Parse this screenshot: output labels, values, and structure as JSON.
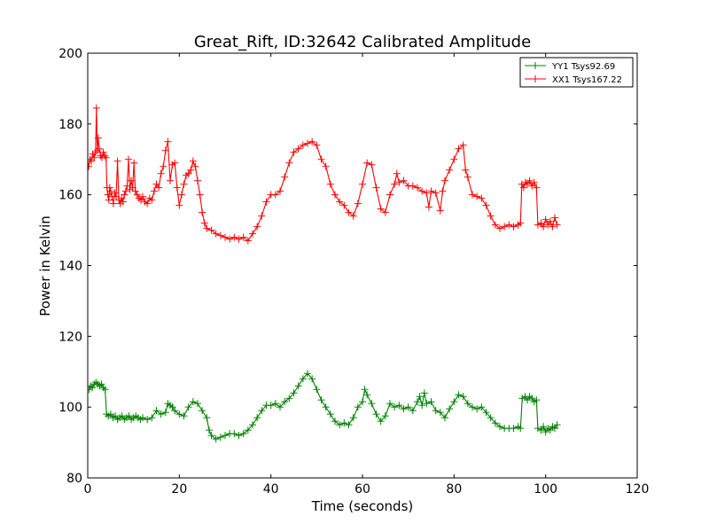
{
  "chart_data": {
    "type": "line",
    "title": "Great_Rift, ID:32642 Calibrated Amplitude",
    "xlabel": "Time (seconds)",
    "ylabel": "Power in Kelvin",
    "xlim": [
      0,
      120
    ],
    "ylim": [
      80,
      200
    ],
    "xticks": [
      0,
      20,
      40,
      60,
      80,
      100,
      120
    ],
    "yticks": [
      80,
      100,
      120,
      140,
      160,
      180,
      200
    ],
    "grid": false,
    "legend_position": "top-right",
    "marker": "plus",
    "series": [
      {
        "name": "YY1 Tsys92.69",
        "color": "#008000",
        "points": [
          [
            0.3,
            105.0
          ],
          [
            0.6,
            106.0
          ],
          [
            1.0,
            105.5
          ],
          [
            1.4,
            106.5
          ],
          [
            1.8,
            107.0
          ],
          [
            2.2,
            106.5
          ],
          [
            2.6,
            106.0
          ],
          [
            3.0,
            106.5
          ],
          [
            3.4,
            105.5
          ],
          [
            3.8,
            105.0
          ],
          [
            4.1,
            98.0
          ],
          [
            4.5,
            97.5
          ],
          [
            5.0,
            98.0
          ],
          [
            5.5,
            97.0
          ],
          [
            6.0,
            97.5
          ],
          [
            6.5,
            96.5
          ],
          [
            7.0,
            97.0
          ],
          [
            7.5,
            97.5
          ],
          [
            8.0,
            96.5
          ],
          [
            8.5,
            97.0
          ],
          [
            9.0,
            97.5
          ],
          [
            9.5,
            96.5
          ],
          [
            10.0,
            97.0
          ],
          [
            10.5,
            97.5
          ],
          [
            11.0,
            97.0
          ],
          [
            11.5,
            96.5
          ],
          [
            12.0,
            97.0
          ],
          [
            13.0,
            96.5
          ],
          [
            14.0,
            97.0
          ],
          [
            15.0,
            99.0
          ],
          [
            16.0,
            98.0
          ],
          [
            17.0,
            98.5
          ],
          [
            17.5,
            101.0
          ],
          [
            18.0,
            100.5
          ],
          [
            18.5,
            100.0
          ],
          [
            19.0,
            99.0
          ],
          [
            20.0,
            98.0
          ],
          [
            21.0,
            97.5
          ],
          [
            22.0,
            100.0
          ],
          [
            23.0,
            101.5
          ],
          [
            24.0,
            101.0
          ],
          [
            25.0,
            99.0
          ],
          [
            26.0,
            97.0
          ],
          [
            26.5,
            93.5
          ],
          [
            27.0,
            92.0
          ],
          [
            28.0,
            91.0
          ],
          [
            29.0,
            91.5
          ],
          [
            30.0,
            92.0
          ],
          [
            31.0,
            92.5
          ],
          [
            32.0,
            92.5
          ],
          [
            33.0,
            92.0
          ],
          [
            34.0,
            92.5
          ],
          [
            35.0,
            93.5
          ],
          [
            36.0,
            95.0
          ],
          [
            37.0,
            97.0
          ],
          [
            38.0,
            99.0
          ],
          [
            39.0,
            100.5
          ],
          [
            40.0,
            100.5
          ],
          [
            41.0,
            101.0
          ],
          [
            42.0,
            100.0
          ],
          [
            43.0,
            101.5
          ],
          [
            44.0,
            102.5
          ],
          [
            45.0,
            104.0
          ],
          [
            46.0,
            106.0
          ],
          [
            47.0,
            108.0
          ],
          [
            48.0,
            109.5
          ],
          [
            49.0,
            108.0
          ],
          [
            50.0,
            105.0
          ],
          [
            51.0,
            102.0
          ],
          [
            52.0,
            100.0
          ],
          [
            53.0,
            98.0
          ],
          [
            54.0,
            96.0
          ],
          [
            55.0,
            95.0
          ],
          [
            56.0,
            95.5
          ],
          [
            57.0,
            95.0
          ],
          [
            58.0,
            97.0
          ],
          [
            59.0,
            100.0
          ],
          [
            60.0,
            101.5
          ],
          [
            60.5,
            105.0
          ],
          [
            61.0,
            103.5
          ],
          [
            62.0,
            101.0
          ],
          [
            63.0,
            98.0
          ],
          [
            64.0,
            96.0
          ],
          [
            65.0,
            97.5
          ],
          [
            66.0,
            101.0
          ],
          [
            67.0,
            100.0
          ],
          [
            68.0,
            100.5
          ],
          [
            69.0,
            99.5
          ],
          [
            70.0,
            100.0
          ],
          [
            71.0,
            99.0
          ],
          [
            72.0,
            101.5
          ],
          [
            72.5,
            103.0
          ],
          [
            73.0,
            100.5
          ],
          [
            73.5,
            104.0
          ],
          [
            74.0,
            101.0
          ],
          [
            75.0,
            101.5
          ],
          [
            76.0,
            99.0
          ],
          [
            77.0,
            98.5
          ],
          [
            78.0,
            97.0
          ],
          [
            79.0,
            99.5
          ],
          [
            80.0,
            101.5
          ],
          [
            81.0,
            103.5
          ],
          [
            82.0,
            103.0
          ],
          [
            83.0,
            101.0
          ],
          [
            84.0,
            100.0
          ],
          [
            85.0,
            99.5
          ],
          [
            86.0,
            100.0
          ],
          [
            87.0,
            98.5
          ],
          [
            88.0,
            97.0
          ],
          [
            89.0,
            95.5
          ],
          [
            90.0,
            94.5
          ],
          [
            91.0,
            94.0
          ],
          [
            92.0,
            94.0
          ],
          [
            93.0,
            94.0
          ],
          [
            94.0,
            94.5
          ],
          [
            94.5,
            94.0
          ],
          [
            94.9,
            102.5
          ],
          [
            95.5,
            103.0
          ],
          [
            96.0,
            102.0
          ],
          [
            96.5,
            103.0
          ],
          [
            97.0,
            102.5
          ],
          [
            97.5,
            101.5
          ],
          [
            98.0,
            102.0
          ],
          [
            98.3,
            94.0
          ],
          [
            99.0,
            93.5
          ],
          [
            99.5,
            94.5
          ],
          [
            100.0,
            93.0
          ],
          [
            100.5,
            94.0
          ],
          [
            101.0,
            93.5
          ],
          [
            101.5,
            94.5
          ],
          [
            102.0,
            94.0
          ],
          [
            102.5,
            95.0
          ]
        ]
      },
      {
        "name": "XX1 Tsys167.22",
        "color": "#ff0000",
        "points": [
          [
            0.2,
            168.0
          ],
          [
            0.5,
            170.0
          ],
          [
            0.8,
            169.5
          ],
          [
            1.1,
            171.5
          ],
          [
            1.4,
            170.5
          ],
          [
            1.7,
            172.0
          ],
          [
            1.9,
            184.5
          ],
          [
            2.1,
            172.5
          ],
          [
            2.3,
            176.0
          ],
          [
            2.5,
            173.0
          ],
          [
            2.8,
            171.0
          ],
          [
            3.1,
            170.5
          ],
          [
            3.4,
            172.0
          ],
          [
            3.7,
            171.0
          ],
          [
            4.0,
            170.5
          ],
          [
            4.2,
            162.0
          ],
          [
            4.4,
            160.0
          ],
          [
            4.6,
            158.5
          ],
          [
            4.8,
            162.0
          ],
          [
            5.0,
            161.0
          ],
          [
            5.3,
            159.5
          ],
          [
            5.6,
            157.5
          ],
          [
            5.9,
            160.5
          ],
          [
            6.2,
            159.5
          ],
          [
            6.5,
            169.5
          ],
          [
            6.8,
            158.5
          ],
          [
            7.1,
            157.5
          ],
          [
            7.4,
            159.0
          ],
          [
            7.7,
            158.0
          ],
          [
            8.0,
            160.0
          ],
          [
            8.3,
            161.0
          ],
          [
            8.6,
            162.5
          ],
          [
            8.9,
            170.0
          ],
          [
            9.2,
            161.5
          ],
          [
            9.5,
            164.0
          ],
          [
            9.8,
            162.0
          ],
          [
            10.1,
            169.0
          ],
          [
            10.4,
            161.0
          ],
          [
            10.8,
            160.0
          ],
          [
            11.2,
            159.0
          ],
          [
            11.6,
            158.5
          ],
          [
            12.0,
            159.5
          ],
          [
            12.5,
            158.0
          ],
          [
            13.0,
            157.5
          ],
          [
            13.5,
            159.0
          ],
          [
            14.0,
            158.5
          ],
          [
            14.5,
            161.0
          ],
          [
            15.0,
            163.0
          ],
          [
            15.5,
            162.0
          ],
          [
            16.0,
            166.0
          ],
          [
            16.5,
            168.0
          ],
          [
            17.0,
            172.5
          ],
          [
            17.5,
            175.0
          ],
          [
            18.0,
            164.0
          ],
          [
            18.5,
            168.5
          ],
          [
            19.0,
            169.0
          ],
          [
            19.5,
            162.0
          ],
          [
            20.0,
            157.0
          ],
          [
            20.5,
            160.0
          ],
          [
            21.0,
            163.0
          ],
          [
            21.5,
            165.5
          ],
          [
            22.0,
            166.0
          ],
          [
            22.5,
            167.0
          ],
          [
            23.0,
            169.5
          ],
          [
            23.5,
            168.0
          ],
          [
            24.0,
            164.0
          ],
          [
            24.5,
            160.0
          ],
          [
            25.0,
            155.0
          ],
          [
            25.5,
            152.0
          ],
          [
            26.0,
            150.5
          ],
          [
            27.0,
            150.0
          ],
          [
            28.0,
            149.0
          ],
          [
            29.0,
            148.5
          ],
          [
            30.0,
            148.0
          ],
          [
            31.0,
            147.5
          ],
          [
            32.0,
            148.0
          ],
          [
            33.0,
            147.5
          ],
          [
            34.0,
            148.0
          ],
          [
            35.0,
            147.0
          ],
          [
            36.0,
            149.0
          ],
          [
            37.0,
            151.0
          ],
          [
            38.0,
            154.0
          ],
          [
            39.0,
            158.0
          ],
          [
            40.0,
            160.0
          ],
          [
            41.0,
            160.0
          ],
          [
            42.0,
            161.0
          ],
          [
            43.0,
            165.0
          ],
          [
            44.0,
            169.0
          ],
          [
            45.0,
            172.0
          ],
          [
            46.0,
            173.0
          ],
          [
            47.0,
            174.0
          ],
          [
            48.0,
            174.5
          ],
          [
            49.0,
            175.0
          ],
          [
            50.0,
            174.0
          ],
          [
            51.0,
            170.0
          ],
          [
            52.0,
            168.0
          ],
          [
            53.0,
            163.0
          ],
          [
            54.0,
            160.0
          ],
          [
            55.0,
            158.0
          ],
          [
            56.0,
            157.0
          ],
          [
            57.0,
            155.0
          ],
          [
            58.0,
            154.0
          ],
          [
            59.0,
            157.5
          ],
          [
            60.0,
            163.0
          ],
          [
            61.0,
            169.0
          ],
          [
            62.0,
            168.5
          ],
          [
            63.0,
            162.0
          ],
          [
            64.0,
            156.0
          ],
          [
            65.0,
            155.0
          ],
          [
            66.0,
            160.0
          ],
          [
            67.0,
            163.0
          ],
          [
            67.5,
            166.0
          ],
          [
            68.0,
            163.5
          ],
          [
            69.0,
            164.0
          ],
          [
            70.0,
            162.5
          ],
          [
            71.0,
            162.5
          ],
          [
            72.0,
            162.0
          ],
          [
            73.0,
            161.0
          ],
          [
            74.0,
            160.5
          ],
          [
            74.5,
            156.5
          ],
          [
            75.0,
            161.0
          ],
          [
            76.0,
            160.5
          ],
          [
            77.0,
            155.5
          ],
          [
            77.5,
            161.0
          ],
          [
            78.0,
            164.0
          ],
          [
            79.0,
            167.0
          ],
          [
            80.0,
            170.0
          ],
          [
            81.0,
            173.0
          ],
          [
            82.0,
            174.0
          ],
          [
            82.5,
            167.0
          ],
          [
            83.0,
            165.0
          ],
          [
            84.0,
            160.0
          ],
          [
            85.0,
            159.5
          ],
          [
            86.0,
            159.0
          ],
          [
            87.0,
            157.0
          ],
          [
            88.0,
            154.0
          ],
          [
            89.0,
            151.5
          ],
          [
            90.0,
            150.5
          ],
          [
            91.0,
            151.0
          ],
          [
            92.0,
            151.5
          ],
          [
            93.0,
            151.0
          ],
          [
            94.0,
            151.5
          ],
          [
            94.5,
            152.0
          ],
          [
            94.8,
            163.0
          ],
          [
            95.2,
            162.0
          ],
          [
            95.6,
            163.5
          ],
          [
            96.0,
            163.0
          ],
          [
            96.5,
            164.0
          ],
          [
            97.0,
            162.5
          ],
          [
            97.5,
            163.5
          ],
          [
            98.0,
            162.0
          ],
          [
            98.3,
            151.5
          ],
          [
            99.0,
            152.0
          ],
          [
            99.5,
            151.0
          ],
          [
            100.0,
            153.0
          ],
          [
            100.5,
            151.5
          ],
          [
            101.0,
            152.5
          ],
          [
            101.5,
            151.0
          ],
          [
            102.0,
            153.5
          ],
          [
            102.5,
            151.5
          ]
        ]
      }
    ]
  }
}
